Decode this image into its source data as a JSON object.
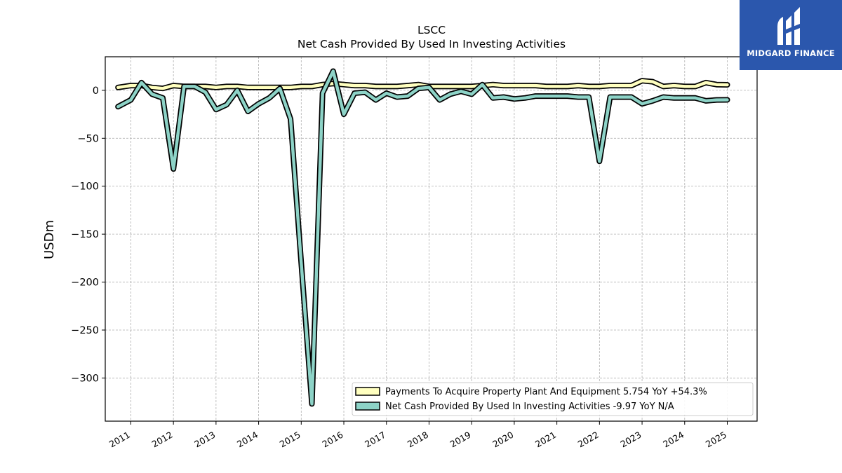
{
  "chart_data": {
    "type": "line",
    "title": "LSCC",
    "subtitle": "Net Cash Provided By Used In Investing Activities",
    "ylabel": "USDm",
    "xlabel": "",
    "ylim": [
      -345,
      35
    ],
    "xlim": [
      2010.4,
      2025.7
    ],
    "yticks": [
      0,
      -50,
      -100,
      -150,
      -200,
      -250,
      -300
    ],
    "ytick_labels": [
      "0",
      "−50",
      "−100",
      "−150",
      "−200",
      "−250",
      "−300"
    ],
    "xticks": [
      2011,
      2012,
      2013,
      2014,
      2015,
      2016,
      2017,
      2018,
      2019,
      2020,
      2021,
      2022,
      2023,
      2024,
      2025
    ],
    "grid": true,
    "legend_position": "lower-right",
    "series": [
      {
        "name": "Payments To Acquire Property Plant And Equipment",
        "legend_label": "Payments To Acquire Property Plant And Equipment  5.754 YoY +54.3%",
        "color": "#ffffbf",
        "x": [
          2010.7,
          2011.0,
          2011.25,
          2011.5,
          2011.75,
          2012.0,
          2012.25,
          2012.5,
          2012.75,
          2013.0,
          2013.25,
          2013.5,
          2013.75,
          2014.0,
          2014.25,
          2014.5,
          2014.75,
          2015.0,
          2015.25,
          2015.5,
          2015.75,
          2016.0,
          2016.25,
          2016.5,
          2016.75,
          2017.0,
          2017.25,
          2017.5,
          2017.75,
          2018.0,
          2018.25,
          2018.5,
          2018.75,
          2019.0,
          2019.25,
          2019.5,
          2019.75,
          2020.0,
          2020.25,
          2020.5,
          2020.75,
          2021.0,
          2021.25,
          2021.5,
          2021.75,
          2022.0,
          2022.25,
          2022.5,
          2022.75,
          2023.0,
          2023.25,
          2023.5,
          2023.75,
          2024.0,
          2024.25,
          2024.5,
          2024.75,
          2025.0
        ],
        "values": [
          3,
          5,
          5,
          3,
          2,
          5,
          4,
          4,
          4,
          3,
          4,
          4,
          3,
          3,
          3,
          3,
          3,
          4,
          4,
          6,
          7,
          6,
          5,
          5,
          4,
          4,
          4,
          5,
          6,
          4,
          4,
          4,
          4,
          4,
          5,
          6,
          5,
          5,
          5,
          5,
          4,
          4,
          4,
          5,
          4,
          4,
          5,
          5,
          5,
          10,
          9,
          4,
          5,
          4,
          4,
          8,
          6,
          5.754
        ]
      },
      {
        "name": "Net Cash Provided By Used In Investing Activities",
        "legend_label": "Net Cash Provided By Used In Investing Activities  -9.97 YoY N/A",
        "color": "#8dd3c7",
        "x": [
          2010.7,
          2011.0,
          2011.25,
          2011.5,
          2011.75,
          2012.0,
          2012.25,
          2012.5,
          2012.75,
          2013.0,
          2013.25,
          2013.5,
          2013.75,
          2014.0,
          2014.25,
          2014.5,
          2014.75,
          2015.0,
          2015.25,
          2015.5,
          2015.75,
          2016.0,
          2016.25,
          2016.5,
          2016.75,
          2017.0,
          2017.25,
          2017.5,
          2017.75,
          2018.0,
          2018.25,
          2018.5,
          2018.75,
          2019.0,
          2019.25,
          2019.5,
          2019.75,
          2020.0,
          2020.25,
          2020.5,
          2020.75,
          2021.0,
          2021.25,
          2021.5,
          2021.75,
          2022.0,
          2022.25,
          2022.5,
          2022.75,
          2023.0,
          2023.25,
          2023.5,
          2023.75,
          2024.0,
          2024.25,
          2024.5,
          2024.75,
          2025.0
        ],
        "values": [
          -17,
          -10,
          8,
          -4,
          -8,
          -82,
          4,
          4,
          -2,
          -20,
          -15,
          0,
          -22,
          -14,
          -8,
          2,
          -30,
          -180,
          -327,
          -3,
          20,
          -25,
          -3,
          -2,
          -10,
          -3,
          -7,
          -6,
          2,
          3,
          -10,
          -4,
          -1,
          -4,
          6,
          -8,
          -7,
          -9,
          -8,
          -6,
          -6,
          -6,
          -6,
          -7,
          -7,
          -74,
          -7,
          -7,
          -7,
          -14,
          -11,
          -7,
          -8,
          -8,
          -8,
          -11,
          -10,
          -9.97
        ]
      }
    ]
  },
  "logo": {
    "text": "MIDGARD FINANCE",
    "icon": "midgard-logo-icon"
  }
}
